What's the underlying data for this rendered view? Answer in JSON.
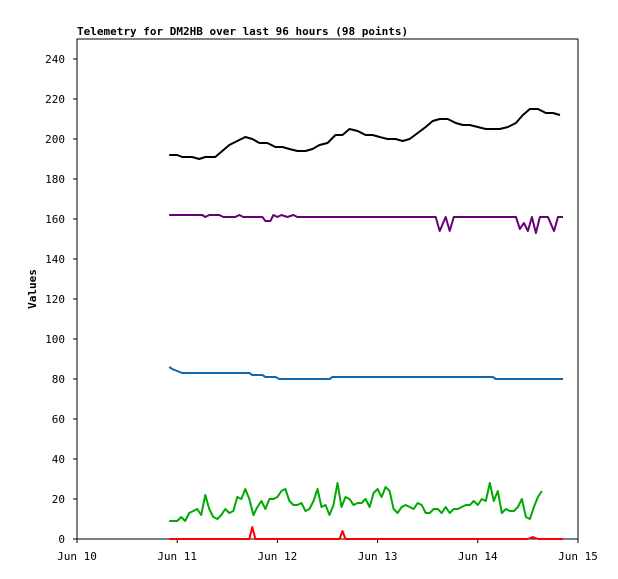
{
  "chart_data": {
    "type": "line",
    "title": "Telemetry for DM2HB over last 96 hours (98 points)",
    "xlabel": "",
    "ylabel": "Values",
    "xlim": [
      0,
      5
    ],
    "ylim": [
      0,
      250
    ],
    "x_ticks": [
      {
        "pos": 0,
        "label": "Jun 10"
      },
      {
        "pos": 1,
        "label": "Jun 11"
      },
      {
        "pos": 2,
        "label": "Jun 12"
      },
      {
        "pos": 3,
        "label": "Jun 13"
      },
      {
        "pos": 4,
        "label": "Jun 14"
      },
      {
        "pos": 5,
        "label": "Jun 15"
      }
    ],
    "y_ticks": [
      0,
      20,
      40,
      60,
      80,
      100,
      120,
      140,
      160,
      180,
      200,
      220,
      240
    ],
    "grid": false,
    "legend": "none",
    "series": [
      {
        "color": "#000000",
        "points": [
          [
            0.92,
            192
          ],
          [
            1.0,
            192
          ],
          [
            1.05,
            191
          ],
          [
            1.15,
            191
          ],
          [
            1.22,
            190
          ],
          [
            1.28,
            191
          ],
          [
            1.38,
            191
          ],
          [
            1.45,
            194
          ],
          [
            1.52,
            197
          ],
          [
            1.6,
            199
          ],
          [
            1.68,
            201
          ],
          [
            1.75,
            200
          ],
          [
            1.82,
            198
          ],
          [
            1.9,
            198
          ],
          [
            1.98,
            196
          ],
          [
            2.05,
            196
          ],
          [
            2.12,
            195
          ],
          [
            2.2,
            194
          ],
          [
            2.28,
            194
          ],
          [
            2.35,
            195
          ],
          [
            2.42,
            197
          ],
          [
            2.5,
            198
          ],
          [
            2.58,
            202
          ],
          [
            2.65,
            202
          ],
          [
            2.72,
            205
          ],
          [
            2.8,
            204
          ],
          [
            2.88,
            202
          ],
          [
            2.95,
            202
          ],
          [
            3.02,
            201
          ],
          [
            3.1,
            200
          ],
          [
            3.18,
            200
          ],
          [
            3.25,
            199
          ],
          [
            3.32,
            200
          ],
          [
            3.4,
            203
          ],
          [
            3.48,
            206
          ],
          [
            3.55,
            209
          ],
          [
            3.62,
            210
          ],
          [
            3.7,
            210
          ],
          [
            3.78,
            208
          ],
          [
            3.85,
            207
          ],
          [
            3.92,
            207
          ],
          [
            4.0,
            206
          ],
          [
            4.08,
            205
          ],
          [
            4.15,
            205
          ],
          [
            4.22,
            205
          ],
          [
            4.3,
            206
          ],
          [
            4.38,
            208
          ],
          [
            4.45,
            212
          ],
          [
            4.52,
            215
          ],
          [
            4.6,
            215
          ],
          [
            4.68,
            213
          ],
          [
            4.75,
            213
          ],
          [
            4.82,
            212
          ]
        ]
      },
      {
        "color": "#660077",
        "points": [
          [
            0.92,
            162
          ],
          [
            1.1,
            162
          ],
          [
            1.25,
            162
          ],
          [
            1.28,
            161
          ],
          [
            1.32,
            162
          ],
          [
            1.42,
            162
          ],
          [
            1.46,
            161
          ],
          [
            1.58,
            161
          ],
          [
            1.62,
            162
          ],
          [
            1.66,
            161
          ],
          [
            1.75,
            161
          ],
          [
            1.85,
            161
          ],
          [
            1.88,
            159
          ],
          [
            1.93,
            159
          ],
          [
            1.96,
            162
          ],
          [
            2.0,
            161
          ],
          [
            2.04,
            162
          ],
          [
            2.1,
            161
          ],
          [
            2.16,
            162
          ],
          [
            2.2,
            161
          ],
          [
            2.4,
            161
          ],
          [
            2.6,
            161
          ],
          [
            2.8,
            161
          ],
          [
            3.0,
            161
          ],
          [
            3.2,
            161
          ],
          [
            3.4,
            161
          ],
          [
            3.58,
            161
          ],
          [
            3.62,
            154
          ],
          [
            3.68,
            161
          ],
          [
            3.72,
            154
          ],
          [
            3.76,
            161
          ],
          [
            3.9,
            161
          ],
          [
            4.1,
            161
          ],
          [
            4.3,
            161
          ],
          [
            4.38,
            161
          ],
          [
            4.42,
            155
          ],
          [
            4.46,
            158
          ],
          [
            4.5,
            154
          ],
          [
            4.54,
            161
          ],
          [
            4.58,
            153
          ],
          [
            4.62,
            161
          ],
          [
            4.7,
            161
          ],
          [
            4.76,
            154
          ],
          [
            4.8,
            161
          ],
          [
            4.85,
            161
          ]
        ]
      },
      {
        "color": "#1166aa",
        "points": [
          [
            0.92,
            86
          ],
          [
            0.95,
            85
          ],
          [
            1.0,
            84
          ],
          [
            1.05,
            83
          ],
          [
            1.2,
            83
          ],
          [
            1.4,
            83
          ],
          [
            1.6,
            83
          ],
          [
            1.72,
            83
          ],
          [
            1.75,
            82
          ],
          [
            1.85,
            82
          ],
          [
            1.88,
            81
          ],
          [
            1.98,
            81
          ],
          [
            2.02,
            80
          ],
          [
            2.2,
            80
          ],
          [
            2.4,
            80
          ],
          [
            2.52,
            80
          ],
          [
            2.55,
            81
          ],
          [
            2.7,
            81
          ],
          [
            2.9,
            81
          ],
          [
            3.1,
            81
          ],
          [
            3.3,
            81
          ],
          [
            3.5,
            81
          ],
          [
            3.7,
            81
          ],
          [
            3.9,
            81
          ],
          [
            4.1,
            81
          ],
          [
            4.15,
            81
          ],
          [
            4.18,
            80
          ],
          [
            4.4,
            80
          ],
          [
            4.6,
            80
          ],
          [
            4.85,
            80
          ]
        ]
      },
      {
        "color": "#00aa00",
        "points": [
          [
            0.92,
            9
          ],
          [
            1.0,
            9
          ],
          [
            1.04,
            11
          ],
          [
            1.08,
            9
          ],
          [
            1.12,
            13
          ],
          [
            1.16,
            14
          ],
          [
            1.2,
            15
          ],
          [
            1.24,
            12
          ],
          [
            1.28,
            22
          ],
          [
            1.32,
            15
          ],
          [
            1.36,
            11
          ],
          [
            1.4,
            10
          ],
          [
            1.44,
            12
          ],
          [
            1.48,
            15
          ],
          [
            1.52,
            13
          ],
          [
            1.56,
            14
          ],
          [
            1.6,
            21
          ],
          [
            1.64,
            20
          ],
          [
            1.68,
            25
          ],
          [
            1.72,
            20
          ],
          [
            1.76,
            12
          ],
          [
            1.8,
            16
          ],
          [
            1.84,
            19
          ],
          [
            1.88,
            15
          ],
          [
            1.92,
            20
          ],
          [
            1.96,
            20
          ],
          [
            2.0,
            21
          ],
          [
            2.04,
            24
          ],
          [
            2.08,
            25
          ],
          [
            2.12,
            19
          ],
          [
            2.16,
            17
          ],
          [
            2.2,
            17
          ],
          [
            2.24,
            18
          ],
          [
            2.28,
            14
          ],
          [
            2.32,
            15
          ],
          [
            2.36,
            19
          ],
          [
            2.4,
            25
          ],
          [
            2.44,
            16
          ],
          [
            2.48,
            17
          ],
          [
            2.52,
            12
          ],
          [
            2.56,
            17
          ],
          [
            2.6,
            28
          ],
          [
            2.64,
            16
          ],
          [
            2.68,
            21
          ],
          [
            2.72,
            20
          ],
          [
            2.76,
            17
          ],
          [
            2.8,
            18
          ],
          [
            2.84,
            18
          ],
          [
            2.88,
            20
          ],
          [
            2.92,
            16
          ],
          [
            2.96,
            23
          ],
          [
            3.0,
            25
          ],
          [
            3.04,
            21
          ],
          [
            3.08,
            26
          ],
          [
            3.12,
            24
          ],
          [
            3.16,
            15
          ],
          [
            3.2,
            13
          ],
          [
            3.24,
            16
          ],
          [
            3.28,
            17
          ],
          [
            3.32,
            16
          ],
          [
            3.36,
            15
          ],
          [
            3.4,
            18
          ],
          [
            3.44,
            17
          ],
          [
            3.48,
            13
          ],
          [
            3.52,
            13
          ],
          [
            3.56,
            15
          ],
          [
            3.6,
            15
          ],
          [
            3.64,
            13
          ],
          [
            3.68,
            16
          ],
          [
            3.72,
            13
          ],
          [
            3.76,
            15
          ],
          [
            3.8,
            15
          ],
          [
            3.84,
            16
          ],
          [
            3.88,
            17
          ],
          [
            3.92,
            17
          ],
          [
            3.96,
            19
          ],
          [
            4.0,
            17
          ],
          [
            4.04,
            20
          ],
          [
            4.08,
            19
          ],
          [
            4.12,
            28
          ],
          [
            4.16,
            19
          ],
          [
            4.2,
            24
          ],
          [
            4.24,
            13
          ],
          [
            4.28,
            15
          ],
          [
            4.32,
            14
          ],
          [
            4.36,
            14
          ],
          [
            4.4,
            16
          ],
          [
            4.44,
            20
          ],
          [
            4.48,
            11
          ],
          [
            4.52,
            10
          ],
          [
            4.56,
            16
          ],
          [
            4.6,
            21
          ],
          [
            4.64,
            24
          ]
        ]
      },
      {
        "color": "#ff0000",
        "points": [
          [
            0.92,
            0
          ],
          [
            1.2,
            0
          ],
          [
            1.5,
            0
          ],
          [
            1.72,
            0
          ],
          [
            1.75,
            6
          ],
          [
            1.78,
            0
          ],
          [
            2.0,
            0
          ],
          [
            2.3,
            0
          ],
          [
            2.62,
            0
          ],
          [
            2.65,
            4
          ],
          [
            2.68,
            0
          ],
          [
            3.0,
            0
          ],
          [
            3.3,
            0
          ],
          [
            3.6,
            0
          ],
          [
            3.9,
            0
          ],
          [
            4.2,
            0
          ],
          [
            4.5,
            0
          ],
          [
            4.55,
            1
          ],
          [
            4.6,
            0
          ],
          [
            4.85,
            0
          ]
        ]
      }
    ]
  }
}
